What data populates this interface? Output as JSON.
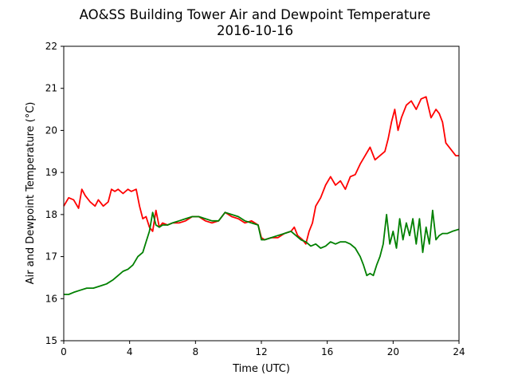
{
  "chart_data": {
    "type": "line",
    "title": "AO&SS Building Tower Air and Dewpoint Temperature",
    "subtitle": "2016-10-16",
    "xlabel": "Time (UTC)",
    "ylabel": "Air and Dewpoint Temperature (°C)",
    "xlim": [
      0,
      24
    ],
    "ylim": [
      15,
      22
    ],
    "xticks": [
      "0",
      "4",
      "8",
      "12",
      "16",
      "20",
      "24"
    ],
    "yticks": [
      "15",
      "16",
      "17",
      "18",
      "19",
      "20",
      "21",
      "22"
    ],
    "grid": false,
    "legend": "none",
    "series": [
      {
        "color": "#ff0000",
        "x": [
          0,
          0.3,
          0.6,
          0.9,
          1.1,
          1.3,
          1.6,
          1.9,
          2.1,
          2.4,
          2.7,
          2.9,
          3.1,
          3.3,
          3.6,
          3.9,
          4.1,
          4.4,
          4.6,
          4.8,
          5.0,
          5.2,
          5.4,
          5.6,
          5.8,
          6.0,
          6.3,
          6.6,
          7.0,
          7.4,
          7.8,
          8.2,
          8.6,
          9.0,
          9.4,
          9.8,
          10.2,
          10.6,
          11.0,
          11.4,
          11.8,
          12.0,
          12.2,
          12.6,
          13.0,
          13.4,
          13.8,
          14.0,
          14.2,
          14.5,
          14.7,
          14.9,
          15.1,
          15.3,
          15.6,
          15.9,
          16.2,
          16.5,
          16.8,
          17.1,
          17.4,
          17.7,
          18.0,
          18.3,
          18.6,
          18.9,
          19.2,
          19.5,
          19.7,
          19.9,
          20.1,
          20.3,
          20.5,
          20.8,
          21.1,
          21.4,
          21.7,
          22.0,
          22.3,
          22.6,
          22.8,
          23.0,
          23.2,
          23.5,
          23.8,
          24.0
        ],
        "values": [
          18.2,
          18.4,
          18.35,
          18.15,
          18.6,
          18.45,
          18.3,
          18.2,
          18.35,
          18.2,
          18.3,
          18.6,
          18.55,
          18.6,
          18.5,
          18.6,
          18.55,
          18.6,
          18.2,
          17.9,
          17.95,
          17.7,
          17.6,
          18.1,
          17.7,
          17.8,
          17.75,
          17.8,
          17.8,
          17.85,
          17.95,
          17.95,
          17.85,
          17.8,
          17.85,
          18.05,
          17.95,
          17.9,
          17.8,
          17.85,
          17.75,
          17.45,
          17.4,
          17.45,
          17.45,
          17.55,
          17.6,
          17.7,
          17.5,
          17.4,
          17.3,
          17.6,
          17.8,
          18.2,
          18.4,
          18.7,
          18.9,
          18.7,
          18.8,
          18.6,
          18.9,
          18.95,
          19.2,
          19.4,
          19.6,
          19.3,
          19.4,
          19.5,
          19.8,
          20.2,
          20.5,
          20.0,
          20.3,
          20.6,
          20.7,
          20.5,
          20.75,
          20.8,
          20.3,
          20.5,
          20.4,
          20.2,
          19.7,
          19.55,
          19.4,
          19.4
        ]
      },
      {
        "color": "#008000",
        "x": [
          0,
          0.3,
          0.6,
          1.0,
          1.4,
          1.8,
          2.2,
          2.6,
          3.0,
          3.3,
          3.6,
          3.9,
          4.2,
          4.5,
          4.8,
          5.0,
          5.2,
          5.4,
          5.6,
          5.8,
          6.0,
          6.3,
          6.6,
          7.0,
          7.4,
          7.8,
          8.2,
          8.6,
          9.0,
          9.4,
          9.8,
          10.2,
          10.6,
          11.0,
          11.4,
          11.8,
          12.0,
          12.2,
          12.6,
          13.0,
          13.4,
          13.8,
          14.1,
          14.4,
          14.7,
          15.0,
          15.3,
          15.6,
          15.9,
          16.2,
          16.5,
          16.8,
          17.1,
          17.4,
          17.7,
          18.0,
          18.2,
          18.4,
          18.6,
          18.8,
          19.0,
          19.2,
          19.4,
          19.6,
          19.8,
          20.0,
          20.2,
          20.4,
          20.6,
          20.8,
          21.0,
          21.2,
          21.4,
          21.6,
          21.8,
          22.0,
          22.2,
          22.4,
          22.6,
          22.8,
          23.0,
          23.3,
          23.6,
          24.0
        ],
        "values": [
          16.1,
          16.1,
          16.15,
          16.2,
          16.25,
          16.25,
          16.3,
          16.35,
          16.45,
          16.55,
          16.65,
          16.7,
          16.8,
          17.0,
          17.1,
          17.35,
          17.6,
          18.05,
          17.75,
          17.7,
          17.75,
          17.75,
          17.8,
          17.85,
          17.9,
          17.95,
          17.95,
          17.9,
          17.85,
          17.85,
          18.05,
          18.0,
          17.95,
          17.85,
          17.8,
          17.75,
          17.4,
          17.4,
          17.45,
          17.5,
          17.55,
          17.6,
          17.5,
          17.4,
          17.35,
          17.25,
          17.3,
          17.2,
          17.25,
          17.35,
          17.3,
          17.35,
          17.35,
          17.3,
          17.2,
          17.0,
          16.8,
          16.55,
          16.6,
          16.55,
          16.8,
          17.0,
          17.3,
          18.0,
          17.3,
          17.6,
          17.2,
          17.9,
          17.4,
          17.8,
          17.5,
          17.9,
          17.3,
          17.9,
          17.1,
          17.7,
          17.3,
          18.1,
          17.4,
          17.5,
          17.55,
          17.55,
          17.6,
          17.65
        ]
      }
    ]
  }
}
